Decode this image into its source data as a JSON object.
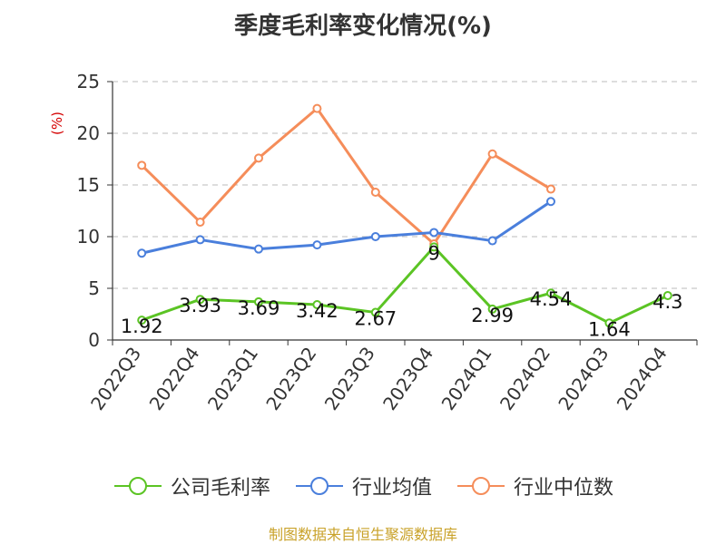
{
  "chart_data": {
    "type": "line",
    "title": "季度毛利率变化情况(%)",
    "ylabel": "(%)",
    "xlabel": "",
    "categories": [
      "2022Q3",
      "2022Q4",
      "2023Q1",
      "2023Q2",
      "2023Q3",
      "2023Q4",
      "2024Q1",
      "2024Q2",
      "2024Q3",
      "2024Q4"
    ],
    "ylim": [
      0,
      25
    ],
    "yticks": [
      0,
      5,
      10,
      15,
      20,
      25
    ],
    "grid": true,
    "legend_position": "bottom",
    "series": [
      {
        "name": "公司毛利率",
        "color": "#5bc424",
        "values": [
          1.92,
          3.93,
          3.69,
          3.42,
          2.67,
          9.0,
          2.99,
          4.54,
          1.64,
          4.3
        ],
        "labels": [
          "1.92",
          "3.93",
          "3.69",
          "3.42",
          "2.67",
          "9",
          "2.99",
          "4.54",
          "1.64",
          "4.3"
        ]
      },
      {
        "name": "行业均值",
        "color": "#4a7fdc",
        "values": [
          8.4,
          9.7,
          8.8,
          9.2,
          10.0,
          10.4,
          9.6,
          13.4,
          null,
          null
        ]
      },
      {
        "name": "行业中位数",
        "color": "#f58d5a",
        "values": [
          16.9,
          11.4,
          17.6,
          22.4,
          14.3,
          9.3,
          18.0,
          14.6,
          null,
          null
        ]
      }
    ]
  },
  "source": "制图数据来自恒生聚源数据库"
}
